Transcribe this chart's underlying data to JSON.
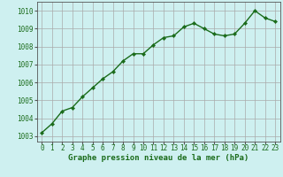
{
  "x": [
    0,
    1,
    2,
    3,
    4,
    5,
    6,
    7,
    8,
    9,
    10,
    11,
    12,
    13,
    14,
    15,
    16,
    17,
    18,
    19,
    20,
    21,
    22,
    23
  ],
  "y": [
    1003.2,
    1003.7,
    1004.4,
    1004.6,
    1005.2,
    1005.7,
    1006.2,
    1006.6,
    1007.2,
    1007.6,
    1007.6,
    1008.1,
    1008.5,
    1008.6,
    1009.1,
    1009.3,
    1009.0,
    1008.7,
    1008.6,
    1008.7,
    1009.3,
    1010.0,
    1009.6,
    1009.4
  ],
  "line_color": "#1a6b1a",
  "marker": "D",
  "marker_size": 2.2,
  "line_width": 1.0,
  "bg_color": "#cef0f0",
  "grid_color": "#aaaaaa",
  "xlabel": "Graphe pression niveau de la mer (hPa)",
  "xlabel_color": "#1a6b1a",
  "xlabel_fontsize": 6.5,
  "tick_color": "#1a6b1a",
  "tick_fontsize": 5.5,
  "ytick_labels": [
    "1003",
    "1004",
    "1005",
    "1006",
    "1007",
    "1008",
    "1009",
    "1010"
  ],
  "ylim": [
    1002.7,
    1010.5
  ],
  "xlim": [
    -0.5,
    23.5
  ],
  "xtick_labels": [
    "0",
    "1",
    "2",
    "3",
    "4",
    "5",
    "6",
    "7",
    "8",
    "9",
    "10",
    "11",
    "12",
    "13",
    "14",
    "15",
    "16",
    "17",
    "18",
    "19",
    "20",
    "21",
    "22",
    "23"
  ]
}
